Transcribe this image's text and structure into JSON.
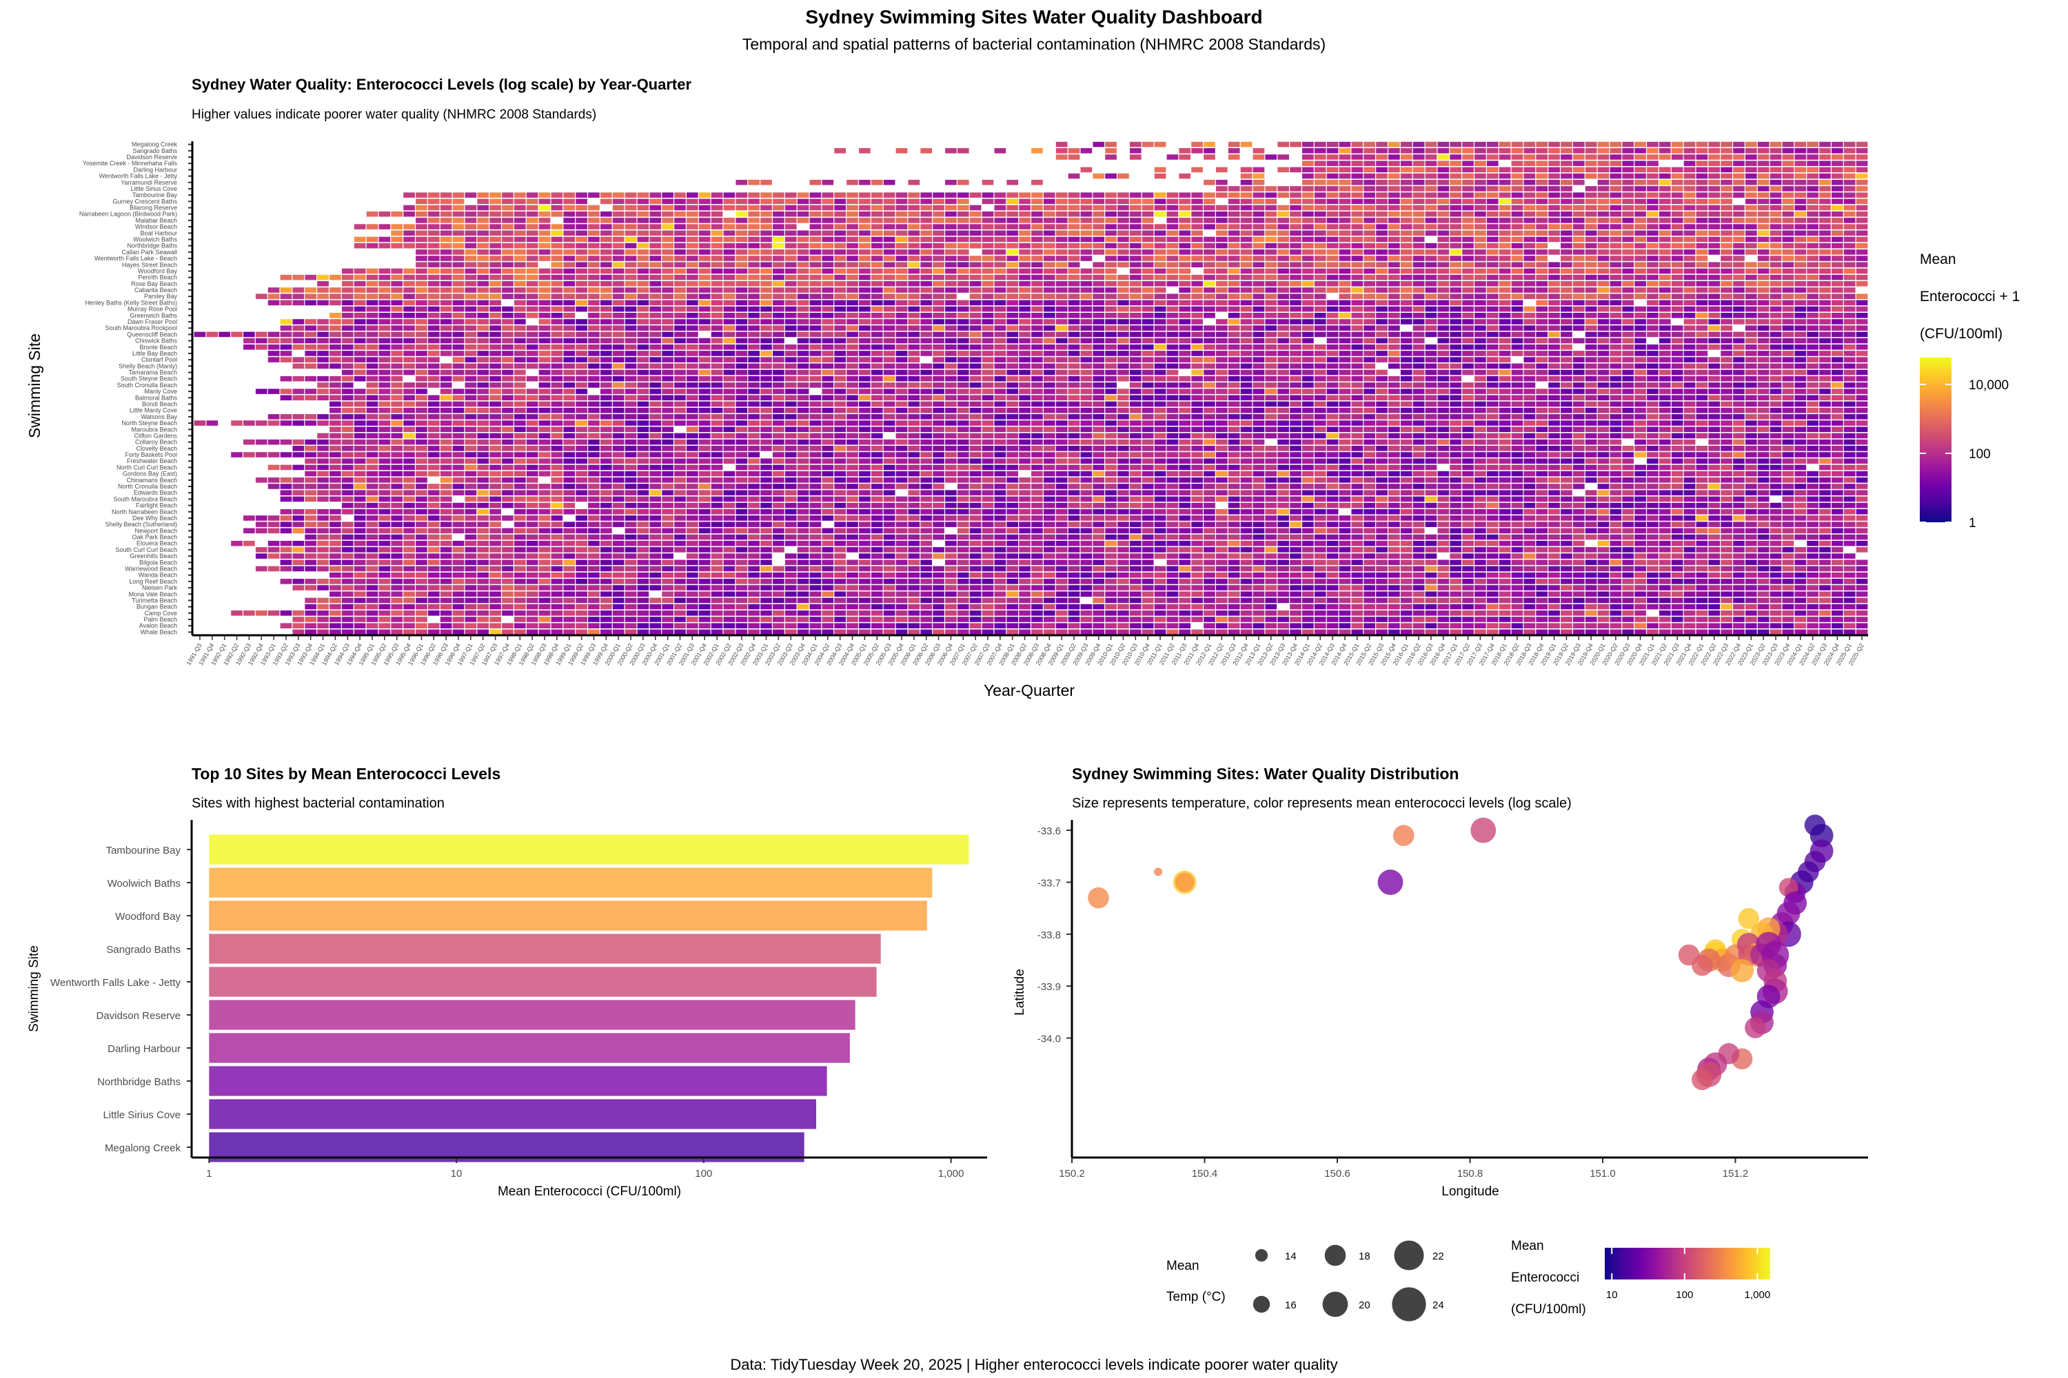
{
  "dashboard": {
    "title": "Sydney Swimming Sites Water Quality Dashboard",
    "subtitle": "Temporal and spatial patterns of bacterial contamination (NHMRC 2008 Standards)",
    "caption": "Data: TidyTuesday Week 20, 2025 | Higher enterococci levels indicate poorer water quality"
  },
  "colors": {
    "scale": [
      "#0d0887",
      "#46039f",
      "#7201a8",
      "#9c179e",
      "#bd3786",
      "#d8576b",
      "#ed7953",
      "#fb9f3a",
      "#fdca26",
      "#f0f921"
    ],
    "axis": "#000000",
    "tick_text": "#4d4d4d"
  },
  "chart_data": [
    {
      "id": "heatmap",
      "type": "heatmap",
      "title": "Sydney Water Quality: Enterococci Levels (log scale) by Year-Quarter",
      "subtitle": "Higher values indicate poorer water quality (NHMRC 2008 Standards)",
      "xlabel": "Year-Quarter",
      "ylabel": "Swimming Site",
      "legend": {
        "title_lines": [
          "Mean",
          "Enterococci + 1",
          "(CFU/100ml)"
        ],
        "ticks": [
          1,
          100,
          10000
        ],
        "tick_labels": [
          "1",
          "100",
          "10,000"
        ],
        "range": [
          1,
          60000
        ],
        "scale": "log10",
        "position": "right"
      },
      "sites": [
        "Megalong Creek",
        "Sangrado Baths",
        "Davidson Reserve",
        "Yosemite Creek - Minnehaha Falls",
        "Darling Harbour",
        "Wentworth Falls Lake - Jetty",
        "Yarramundi Reserve",
        "Little Sirius Cove",
        "Tambourine Bay",
        "Gurney Crescent Baths",
        "Bilarong Reserve",
        "Narrabeen Lagoon (Birdwood Park)",
        "Malabar Beach",
        "Windsor Beach",
        "Boat Harbour",
        "Woolwich Baths",
        "Northbridge Baths",
        "Callan Park Seawall",
        "Wentworth Falls Lake - Beach",
        "Hayes Street Beach",
        "Woodford Bay",
        "Penrith Beach",
        "Rose Bay Beach",
        "Cabarita Beach",
        "Parsley Bay",
        "Henley Baths (Kelly Street Baths)",
        "Murray Rose Pool",
        "Greenwich Baths",
        "Dawn Fraser Pool",
        "South Maroubra Rockpool",
        "Queenscliff Beach",
        "Chiswick Baths",
        "Bronte Beach",
        "Little Bay Beach",
        "Clontarf Pool",
        "Shelly Beach (Manly)",
        "Tamarama Beach",
        "South Steyne Beach",
        "South Cronulla Beach",
        "Manly Cove",
        "Balmoral Baths",
        "Bondi Beach",
        "Little Manly Cove",
        "Watsons Bay",
        "North Steyne Beach",
        "Maroubra Beach",
        "Clifton Gardens",
        "Collaroy Beach",
        "Clovelly Beach",
        "Forty Baskets Pool",
        "Freshwater Beach",
        "North Curl Curl Beach",
        "Gordons Bay (East)",
        "Chinamans Beach",
        "North Cronulla Beach",
        "Edwards Beach",
        "South Maroubra Beach",
        "Fairlight Beach",
        "North Narrabeen Beach",
        "Dee Why Beach",
        "Shelly Beach (Sutherland)",
        "Newport Beach",
        "Oak Park Beach",
        "Elouera Beach",
        "South Curl Curl Beach",
        "Greenhills Beach",
        "Bilgola Beach",
        "Warriewood Beach",
        "Wanda Beach",
        "Long Reef Beach",
        "Nielsen Park",
        "Mona Vale Beach",
        "Turimetta Beach",
        "Bungan Beach",
        "Camp Cove",
        "Palm Beach",
        "Avalon Beach",
        "Whale Beach"
      ],
      "x_start_year": 1991,
      "x_start_quarter": 3,
      "x_end_year": 2025,
      "x_end_quarter": 2,
      "scale_low": 1,
      "scale_high": 60000,
      "fill_note": "cell colours estimated (log-scale enterococci, mostly 10-1,000 CFU/100ml)"
    },
    {
      "id": "bar",
      "type": "bar",
      "orientation": "horizontal",
      "title": "Top 10 Sites by Mean Enterococci Levels",
      "subtitle": "Sites with highest bacterial contamination",
      "xlabel": "Mean Enterococci (CFU/100ml)",
      "ylabel": "Swimming Site",
      "x_scale": "log10",
      "xlim": [
        0.85,
        1400
      ],
      "x_ticks": [
        1,
        10,
        100,
        1000
      ],
      "x_tick_labels": [
        "1",
        "10",
        "100",
        "1,000"
      ],
      "categories": [
        "Tambourine Bay",
        "Woolwich Baths",
        "Woodford Bay",
        "Sangrado Baths",
        "Wentworth Falls Lake - Jetty",
        "Davidson Reserve",
        "Darling Harbour",
        "Northbridge Baths",
        "Little Sirius Cove",
        "Megalong Creek"
      ],
      "values": [
        1180,
        840,
        800,
        520,
        500,
        410,
        390,
        315,
        285,
        255
      ]
    },
    {
      "id": "map",
      "type": "scatter",
      "title": "Sydney Swimming Sites: Water Quality Distribution",
      "subtitle": "Size represents temperature, color represents mean enterococci levels (log scale)",
      "xlabel": "Longitude",
      "ylabel": "Latitude",
      "xlim": [
        150.2,
        151.4
      ],
      "ylim": [
        -34.23,
        -33.58
      ],
      "x_ticks": [
        150.2,
        150.4,
        150.6,
        150.8,
        151.0,
        151.2
      ],
      "x_tick_labels": [
        "150.2",
        "150.4",
        "150.6",
        "150.8",
        "151.0",
        "151.2"
      ],
      "y_ticks": [
        -33.6,
        -33.7,
        -33.8,
        -33.9,
        -34.0
      ],
      "y_tick_labels": [
        "-33.6",
        "-33.7",
        "-33.8",
        "-33.9",
        "-34.0"
      ],
      "points": [
        {
          "lon": 150.24,
          "lat": -33.73,
          "temp": 18,
          "ent": 330
        },
        {
          "lon": 150.33,
          "lat": -33.68,
          "temp": 12,
          "ent": 290
        },
        {
          "lon": 150.37,
          "lat": -33.7,
          "temp": 19,
          "ent": 800
        },
        {
          "lon": 150.37,
          "lat": -33.7,
          "temp": 17,
          "ent": 400
        },
        {
          "lon": 150.7,
          "lat": -33.61,
          "temp": 18,
          "ent": 280
        },
        {
          "lon": 150.82,
          "lat": -33.6,
          "temp": 20,
          "ent": 110
        },
        {
          "lon": 150.68,
          "lat": -33.7,
          "temp": 20,
          "ent": 28
        },
        {
          "lon": 151.32,
          "lat": -33.59,
          "temp": 18,
          "ent": 12
        },
        {
          "lon": 151.33,
          "lat": -33.61,
          "temp": 19,
          "ent": 12
        },
        {
          "lon": 151.33,
          "lat": -33.64,
          "temp": 19,
          "ent": 20
        },
        {
          "lon": 151.32,
          "lat": -33.66,
          "temp": 18,
          "ent": 18
        },
        {
          "lon": 151.31,
          "lat": -33.68,
          "temp": 18,
          "ent": 16
        },
        {
          "lon": 151.3,
          "lat": -33.7,
          "temp": 19,
          "ent": 14
        },
        {
          "lon": 151.29,
          "lat": -33.72,
          "temp": 18,
          "ent": 30
        },
        {
          "lon": 151.28,
          "lat": -33.71,
          "temp": 17,
          "ent": 110
        },
        {
          "lon": 151.29,
          "lat": -33.74,
          "temp": 19,
          "ent": 30
        },
        {
          "lon": 151.28,
          "lat": -33.76,
          "temp": 19,
          "ent": 35
        },
        {
          "lon": 151.27,
          "lat": -33.78,
          "temp": 19,
          "ent": 40
        },
        {
          "lon": 151.28,
          "lat": -33.8,
          "temp": 20,
          "ent": 22
        },
        {
          "lon": 151.26,
          "lat": -33.8,
          "temp": 20,
          "ent": 70
        },
        {
          "lon": 151.25,
          "lat": -33.79,
          "temp": 19,
          "ent": 500
        },
        {
          "lon": 151.24,
          "lat": -33.8,
          "temp": 19,
          "ent": 650
        },
        {
          "lon": 151.22,
          "lat": -33.77,
          "temp": 18,
          "ent": 800
        },
        {
          "lon": 151.21,
          "lat": -33.81,
          "temp": 18,
          "ent": 900
        },
        {
          "lon": 151.17,
          "lat": -33.84,
          "temp": 20,
          "ent": 1180
        },
        {
          "lon": 151.17,
          "lat": -33.83,
          "temp": 18,
          "ent": 840
        },
        {
          "lon": 151.18,
          "lat": -33.85,
          "temp": 19,
          "ent": 500
        },
        {
          "lon": 151.16,
          "lat": -33.85,
          "temp": 19,
          "ent": 200
        },
        {
          "lon": 151.13,
          "lat": -33.84,
          "temp": 18,
          "ent": 150
        },
        {
          "lon": 151.15,
          "lat": -33.86,
          "temp": 18,
          "ent": 170
        },
        {
          "lon": 151.19,
          "lat": -33.86,
          "temp": 19,
          "ent": 200
        },
        {
          "lon": 151.2,
          "lat": -33.84,
          "temp": 18,
          "ent": 300
        },
        {
          "lon": 151.22,
          "lat": -33.82,
          "temp": 19,
          "ent": 90
        },
        {
          "lon": 151.23,
          "lat": -33.84,
          "temp": 19,
          "ent": 500
        },
        {
          "lon": 151.22,
          "lat": -33.84,
          "temp": 18,
          "ent": 130
        },
        {
          "lon": 151.21,
          "lat": -33.87,
          "temp": 19,
          "ent": 520
        },
        {
          "lon": 151.24,
          "lat": -33.84,
          "temp": 19,
          "ent": 60
        },
        {
          "lon": 151.25,
          "lat": -33.82,
          "temp": 20,
          "ent": 45
        },
        {
          "lon": 151.26,
          "lat": -33.84,
          "temp": 21,
          "ent": 38
        },
        {
          "lon": 151.26,
          "lat": -33.86,
          "temp": 19,
          "ent": 40
        },
        {
          "lon": 151.25,
          "lat": -33.87,
          "temp": 19,
          "ent": 70
        },
        {
          "lon": 151.26,
          "lat": -33.89,
          "temp": 19,
          "ent": 80
        },
        {
          "lon": 151.26,
          "lat": -33.91,
          "temp": 20,
          "ent": 60
        },
        {
          "lon": 151.25,
          "lat": -33.92,
          "temp": 19,
          "ent": 30
        },
        {
          "lon": 151.24,
          "lat": -33.95,
          "temp": 19,
          "ent": 25
        },
        {
          "lon": 151.24,
          "lat": -33.97,
          "temp": 19,
          "ent": 60
        },
        {
          "lon": 151.23,
          "lat": -33.98,
          "temp": 18,
          "ent": 90
        },
        {
          "lon": 151.21,
          "lat": -34.04,
          "temp": 18,
          "ent": 200
        },
        {
          "lon": 151.19,
          "lat": -34.03,
          "temp": 18,
          "ent": 100
        },
        {
          "lon": 151.17,
          "lat": -34.05,
          "temp": 19,
          "ent": 80
        },
        {
          "lon": 151.16,
          "lat": -34.06,
          "temp": 19,
          "ent": 65
        },
        {
          "lon": 151.16,
          "lat": -34.07,
          "temp": 20,
          "ent": 120
        },
        {
          "lon": 151.15,
          "lat": -34.08,
          "temp": 18,
          "ent": 140
        }
      ]
    }
  ],
  "shared_legends": {
    "size": {
      "title_lines": [
        "Mean",
        "Temp (°C)"
      ],
      "items": [
        14,
        18,
        22,
        16,
        20,
        24
      ],
      "labels": [
        "14",
        "18",
        "22",
        "16",
        "20",
        "24"
      ]
    },
    "color": {
      "title_lines": [
        "Mean",
        "Enterococci",
        "(CFU/100ml)"
      ],
      "ticks": [
        10,
        100,
        1000
      ],
      "tick_labels": [
        "10",
        "100",
        "1,000"
      ],
      "range": [
        8,
        1500
      ]
    }
  }
}
